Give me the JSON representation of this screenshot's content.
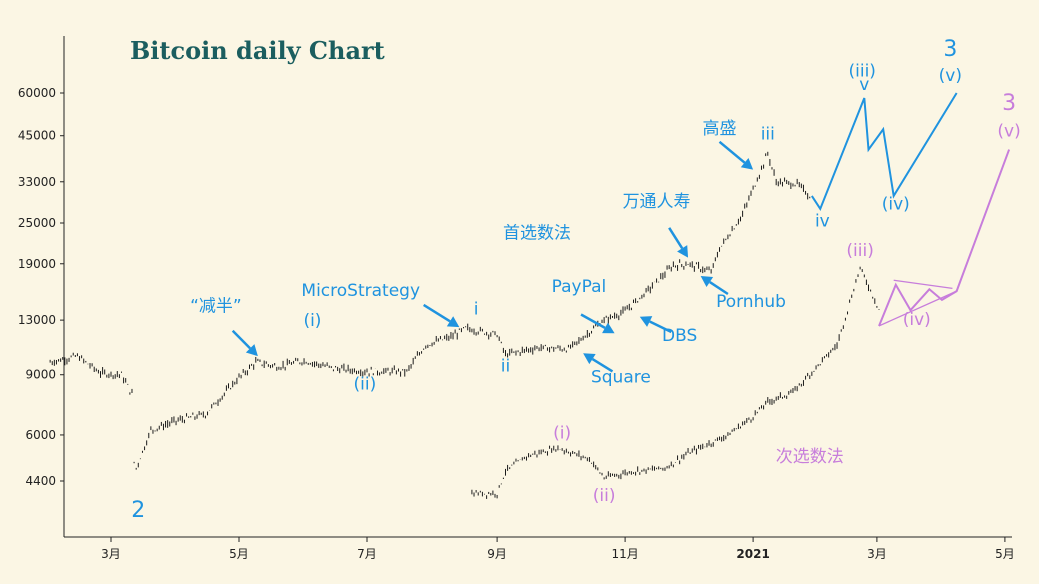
{
  "chart_data": {
    "type": "candlestick",
    "title": "Bitcoin daily Chart",
    "y_scale": "log",
    "ylim": [
      3100,
      78000
    ],
    "y_ticks": [
      4400,
      6000,
      9000,
      13000,
      19000,
      25000,
      33000,
      45000,
      60000
    ],
    "x_ticks": [
      {
        "label": "3月",
        "date": "2020-03-01"
      },
      {
        "label": "5月",
        "date": "2020-05-01"
      },
      {
        "label": "7月",
        "date": "2020-07-01"
      },
      {
        "label": "9月",
        "date": "2020-09-01"
      },
      {
        "label": "11月",
        "date": "2020-11-01"
      },
      {
        "label": "2021",
        "date": "2021-01-01"
      },
      {
        "label": "3月",
        "date": "2021-03-01"
      },
      {
        "label": "5月",
        "date": "2021-05-01"
      }
    ],
    "price_path": [
      [
        "2020-02-01",
        9800
      ],
      [
        "2020-02-14",
        10200
      ],
      [
        "2020-02-25",
        9100
      ],
      [
        "2020-03-06",
        9000
      ],
      [
        "2020-03-11",
        7900
      ],
      [
        "2020-03-12",
        5000
      ],
      [
        "2020-03-13",
        4800
      ],
      [
        "2020-03-20",
        6200
      ],
      [
        "2020-04-01",
        6600
      ],
      [
        "2020-04-15",
        6900
      ],
      [
        "2020-04-30",
        8700
      ],
      [
        "2020-05-09",
        9800
      ],
      [
        "2020-05-20",
        9500
      ],
      [
        "2020-06-01",
        9900
      ],
      [
        "2020-06-15",
        9400
      ],
      [
        "2020-07-01",
        9200
      ],
      [
        "2020-07-20",
        9200
      ],
      [
        "2020-07-29",
        11000
      ],
      [
        "2020-08-10",
        11600
      ],
      [
        "2020-08-17",
        12300
      ],
      [
        "2020-09-01",
        11800
      ],
      [
        "2020-09-05",
        10300
      ],
      [
        "2020-09-20",
        10800
      ],
      [
        "2020-10-05",
        10700
      ],
      [
        "2020-10-10",
        11300
      ],
      [
        "2020-10-21",
        12900
      ],
      [
        "2020-11-01",
        13800
      ],
      [
        "2020-11-10",
        15500
      ],
      [
        "2020-11-24",
        18800
      ],
      [
        "2020-12-01",
        19000
      ],
      [
        "2020-12-12",
        18000
      ],
      [
        "2020-12-16",
        21000
      ],
      [
        "2020-12-27",
        26500
      ],
      [
        "2021-01-08",
        40000
      ],
      [
        "2021-01-12",
        33000
      ],
      [
        "2021-01-22",
        32500
      ],
      [
        "2021-01-28",
        30000
      ]
    ],
    "secondary_path": [
      [
        "2020-08-20",
        4050
      ],
      [
        "2020-09-01",
        4050
      ],
      [
        "2020-09-05",
        4700
      ],
      [
        "2020-09-15",
        5200
      ],
      [
        "2020-09-30",
        5500
      ],
      [
        "2020-10-15",
        5100
      ],
      [
        "2020-10-22",
        4500
      ],
      [
        "2020-11-05",
        4700
      ],
      [
        "2020-11-20",
        4800
      ],
      [
        "2020-12-01",
        5300
      ],
      [
        "2020-12-20",
        6000
      ],
      [
        "2021-01-01",
        6800
      ],
      [
        "2021-01-08",
        7500
      ],
      [
        "2021-01-20",
        8000
      ],
      [
        "2021-02-10",
        11000
      ],
      [
        "2021-02-21",
        18500
      ],
      [
        "2021-03-02",
        14000
      ]
    ],
    "primary_projection": [
      [
        "2021-01-29",
        30000
      ],
      [
        "2021-02-02",
        27500
      ],
      [
        "2021-02-23",
        58000
      ],
      [
        "2021-02-25",
        41000
      ],
      [
        "2021-03-04",
        47000
      ],
      [
        "2021-03-09",
        30000
      ],
      [
        "2021-04-08",
        60000
      ]
    ],
    "secondary_projection": [
      [
        "2021-03-02",
        12500
      ],
      [
        "2021-03-10",
        16500
      ],
      [
        "2021-03-17",
        13900
      ],
      [
        "2021-03-26",
        16000
      ],
      [
        "2021-04-01",
        14900
      ],
      [
        "2021-04-08",
        15800
      ],
      [
        "2021-05-03",
        41000
      ]
    ],
    "triangle_lines": [
      [
        [
          "2021-03-02",
          12500
        ],
        [
          "2021-04-08",
          15800
        ]
      ],
      [
        [
          "2021-03-09",
          17000
        ],
        [
          "2021-04-06",
          16100
        ]
      ]
    ],
    "labels_primary": [
      {
        "text": "2",
        "size": "big",
        "at": [
          "2020-03-14",
          3450
        ]
      },
      {
        "text": "(i)",
        "at": [
          "2020-06-05",
          12500
        ]
      },
      {
        "text": "(ii)",
        "at": [
          "2020-06-30",
          8150
        ]
      },
      {
        "text": "i",
        "at": [
          "2020-08-22",
          13500
        ]
      },
      {
        "text": "ii",
        "at": [
          "2020-09-05",
          9200
        ]
      },
      {
        "text": "iii",
        "at": [
          "2021-01-08",
          43800
        ]
      },
      {
        "text": "iv",
        "at": [
          "2021-02-03",
          24400
        ]
      },
      {
        "text": "(iii)",
        "at": [
          "2021-02-22",
          67000
        ]
      },
      {
        "text": "v",
        "at": [
          "2021-02-23",
          61200
        ]
      },
      {
        "text": "(iv)",
        "at": [
          "2021-03-10",
          27400
        ]
      },
      {
        "text": "3",
        "size": "big",
        "at": [
          "2021-04-05",
          77000
        ]
      },
      {
        "text": "(v)",
        "at": [
          "2021-04-05",
          65000
        ]
      },
      {
        "text": "首选数法",
        "at": [
          "2020-09-20",
          22500
        ]
      },
      {
        "text": "“减半”",
        "at": [
          "2020-04-20",
          13800
        ]
      },
      {
        "text": "MicroStrategy",
        "at": [
          "2020-06-28",
          15300
        ]
      },
      {
        "text": "PayPal",
        "at": [
          "2020-10-10",
          15700
        ]
      },
      {
        "text": "Square",
        "at": [
          "2020-10-30",
          8550
        ]
      },
      {
        "text": "DBS",
        "at": [
          "2020-11-27",
          11300
        ]
      },
      {
        "text": "万通人寿",
        "at": [
          "2020-11-16",
          27800
        ]
      },
      {
        "text": "Pornhub",
        "at": [
          "2020-12-31",
          14200
        ]
      },
      {
        "text": "高盛",
        "at": [
          "2020-12-16",
          45500
        ]
      }
    ],
    "labels_secondary": [
      {
        "text": "(i)",
        "at": [
          "2020-10-02",
          5850
        ]
      },
      {
        "text": "(ii)",
        "at": [
          "2020-10-22",
          3850
        ]
      },
      {
        "text": "次选数法",
        "at": [
          "2021-01-28",
          5000
        ]
      },
      {
        "text": "(iii)",
        "at": [
          "2021-02-21",
          20000
        ]
      },
      {
        "text": "(iv)",
        "at": [
          "2021-03-20",
          12600
        ]
      },
      {
        "text": "3",
        "size": "big",
        "at": [
          "2021-05-03",
          53500
        ]
      },
      {
        "text": "(v)",
        "at": [
          "2021-05-03",
          44700
        ]
      }
    ],
    "arrows": [
      {
        "from": [
          "2020-04-28",
          12100
        ],
        "to": [
          "2020-05-10",
          10200
        ]
      },
      {
        "from": [
          "2020-07-28",
          14400
        ],
        "to": [
          "2020-08-14",
          12400
        ]
      },
      {
        "from": [
          "2020-10-11",
          13500
        ],
        "to": [
          "2020-10-27",
          11900
        ]
      },
      {
        "from": [
          "2020-10-26",
          9200
        ],
        "to": [
          "2020-10-12",
          10400
        ]
      },
      {
        "from": [
          "2020-11-23",
          12000
        ],
        "to": [
          "2020-11-08",
          13300
        ]
      },
      {
        "from": [
          "2020-11-22",
          24200
        ],
        "to": [
          "2020-12-01",
          19800
        ]
      },
      {
        "from": [
          "2020-12-20",
          15500
        ],
        "to": [
          "2020-12-07",
          17500
        ]
      },
      {
        "from": [
          "2020-12-16",
          43200
        ],
        "to": [
          "2021-01-01",
          35800
        ]
      }
    ],
    "colors": {
      "primary": "#1f93df",
      "secondary": "#c77ddb",
      "candles": "#1a1a1a",
      "title": "#1b5e5f",
      "background": "#fbf6e4"
    }
  }
}
